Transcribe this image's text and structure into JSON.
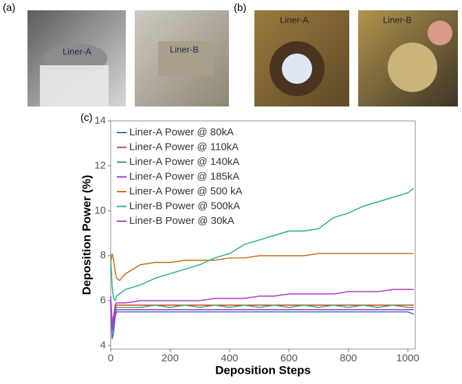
{
  "panels": [
    {
      "label": "(a)",
      "photo_labels": [
        "Liner-A",
        "Liner-B"
      ]
    },
    {
      "label": "(b)",
      "photo_labels": [
        "Liner-A",
        "Liner-B"
      ]
    },
    {
      "label": "(c)"
    }
  ],
  "chart_data": {
    "type": "line",
    "x_label": "Deposition Steps",
    "y_label": "Deposition Power (%)",
    "x": [
      0,
      5,
      10,
      15,
      20,
      30,
      50,
      100,
      150,
      200,
      250,
      300,
      350,
      400,
      450,
      500,
      550,
      600,
      650,
      700,
      750,
      800,
      850,
      900,
      950,
      1000,
      1020
    ],
    "series": [
      {
        "name": "Liner-A Power @ 80kA",
        "color": "#3b6fc6",
        "values": [
          5.8,
          4.3,
          4.6,
          5.3,
          5.5,
          5.5,
          5.5,
          5.5,
          5.5,
          5.5,
          5.5,
          5.5,
          5.5,
          5.5,
          5.5,
          5.5,
          5.5,
          5.5,
          5.5,
          5.5,
          5.5,
          5.5,
          5.5,
          5.5,
          5.5,
          5.5,
          5.4
        ]
      },
      {
        "name": "Liner-A Power @ 110kA",
        "color": "#d0453a",
        "values": [
          6.0,
          5.0,
          5.3,
          5.7,
          5.8,
          5.8,
          5.8,
          5.8,
          5.8,
          5.8,
          5.8,
          5.8,
          5.8,
          5.8,
          5.8,
          5.8,
          5.8,
          5.8,
          5.8,
          5.8,
          5.8,
          5.8,
          5.8,
          5.8,
          5.8,
          5.8,
          5.8
        ]
      },
      {
        "name": "Liner-A Power @ 140kA",
        "color": "#3aa84a",
        "values": [
          6.0,
          4.8,
          5.2,
          5.6,
          5.7,
          5.7,
          5.7,
          5.7,
          5.8,
          5.7,
          5.8,
          5.7,
          5.8,
          5.7,
          5.8,
          5.7,
          5.8,
          5.7,
          5.8,
          5.7,
          5.8,
          5.7,
          5.8,
          5.7,
          5.8,
          5.7,
          5.7
        ]
      },
      {
        "name": "Liner-A Power @ 185kA",
        "color": "#9a3ac8",
        "values": [
          5.9,
          4.6,
          5.0,
          5.5,
          5.6,
          5.6,
          5.6,
          5.6,
          5.6,
          5.6,
          5.6,
          5.6,
          5.6,
          5.6,
          5.6,
          5.6,
          5.6,
          5.6,
          5.6,
          5.6,
          5.6,
          5.6,
          5.6,
          5.6,
          5.6,
          5.6,
          5.6
        ]
      },
      {
        "name": "Liner-A Power @ 500 kA",
        "color": "#c8701e",
        "values": [
          7.7,
          8.1,
          7.8,
          7.3,
          7.0,
          6.9,
          7.2,
          7.6,
          7.7,
          7.7,
          7.8,
          7.8,
          7.8,
          7.9,
          7.9,
          8.0,
          8.0,
          8.0,
          8.0,
          8.1,
          8.1,
          8.1,
          8.1,
          8.1,
          8.1,
          8.1,
          8.1
        ]
      },
      {
        "name": "Liner-B Power @ 500kA",
        "color": "#2bb38a",
        "values": [
          7.9,
          6.6,
          6.1,
          6.0,
          6.2,
          6.3,
          6.5,
          6.7,
          7.0,
          7.2,
          7.4,
          7.6,
          7.9,
          8.1,
          8.5,
          8.7,
          8.9,
          9.1,
          9.1,
          9.2,
          9.7,
          9.9,
          10.2,
          10.4,
          10.6,
          10.8,
          11.0
        ]
      },
      {
        "name": "Liner-B Power @ 30kA",
        "color": "#b03ad0",
        "values": [
          6.2,
          5.0,
          5.3,
          5.8,
          5.9,
          5.9,
          5.9,
          6.0,
          6.0,
          6.0,
          6.0,
          6.0,
          6.1,
          6.1,
          6.1,
          6.2,
          6.2,
          6.3,
          6.3,
          6.3,
          6.3,
          6.4,
          6.4,
          6.4,
          6.5,
          6.5,
          6.5
        ]
      }
    ],
    "xlim": [
      0,
      1025
    ],
    "ylim": [
      3.85,
      14
    ],
    "xticks": [
      0,
      200,
      400,
      600,
      800,
      1000
    ],
    "yticks": [
      4,
      6,
      8,
      10,
      12,
      14
    ],
    "legend": "upper-left"
  }
}
